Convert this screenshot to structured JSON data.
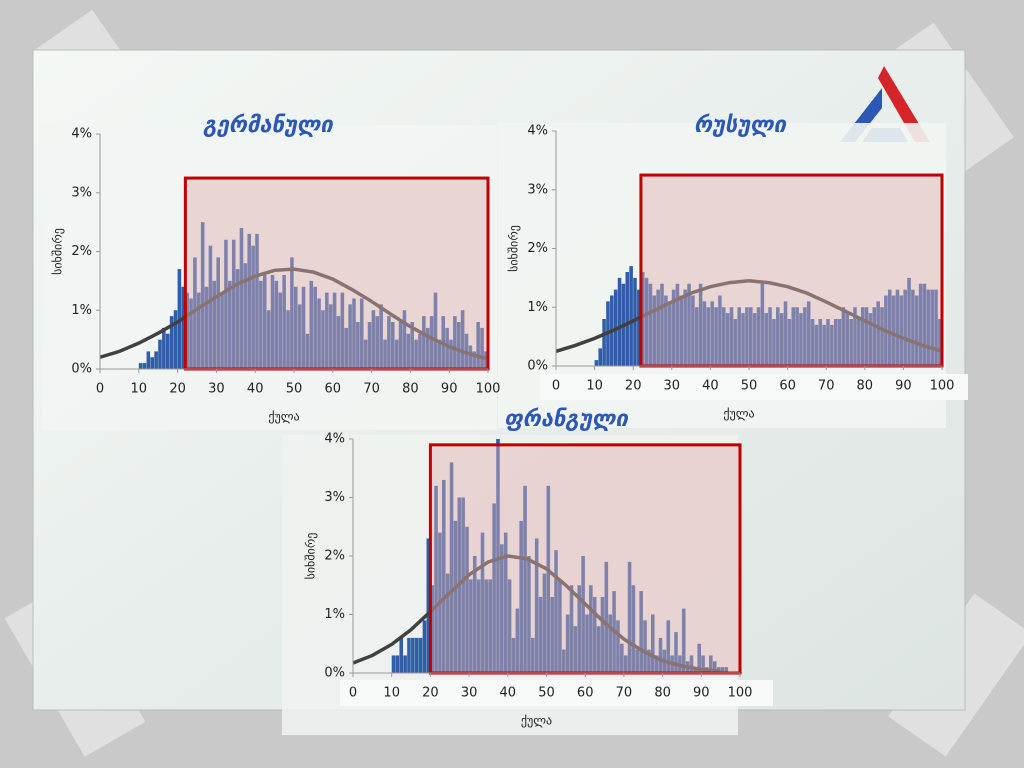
{
  "chart_data": [
    {
      "type": "histogram",
      "title": "გერმანული",
      "xlabel": "ქულა",
      "ylabel": "სიხშირე",
      "color": "#2f5da8",
      "bins": [
        10,
        11,
        12,
        13,
        14,
        15,
        16,
        17,
        18,
        19,
        20,
        21,
        22,
        23,
        24,
        25,
        26,
        27,
        28,
        29,
        30,
        31,
        32,
        33,
        34,
        35,
        36,
        37,
        38,
        39,
        40,
        41,
        42,
        43,
        44,
        45,
        46,
        47,
        48,
        49,
        50,
        51,
        52,
        53,
        54,
        55,
        56,
        57,
        58,
        59,
        60,
        61,
        62,
        63,
        64,
        65,
        66,
        67,
        68,
        69,
        70,
        71,
        72,
        73,
        74,
        75,
        76,
        77,
        78,
        79,
        80,
        81,
        82,
        83,
        84,
        85,
        86,
        87,
        88,
        89,
        90,
        91,
        92,
        93,
        94,
        95,
        96,
        97,
        98,
        99,
        100
      ],
      "values": [
        0.1,
        0.1,
        0.3,
        0.2,
        0.3,
        0.5,
        0.7,
        0.6,
        0.9,
        1.0,
        1.7,
        1.4,
        1.3,
        1.2,
        1.9,
        1.3,
        2.5,
        1.4,
        2.1,
        1.5,
        1.9,
        1.3,
        2.2,
        1.5,
        2.2,
        1.7,
        2.4,
        1.8,
        2.3,
        2.1,
        2.3,
        1.5,
        1.6,
        1.0,
        1.6,
        1.5,
        1.3,
        1.6,
        1.0,
        1.9,
        1.4,
        1.1,
        1.4,
        0.6,
        1.5,
        1.4,
        1.2,
        1.0,
        1.3,
        1.1,
        1.3,
        0.9,
        1.3,
        0.7,
        1.1,
        1.2,
        0.8,
        1.2,
        0.5,
        0.8,
        1.0,
        0.9,
        1.1,
        0.5,
        0.9,
        0.8,
        0.5,
        0.8,
        1.0,
        0.6,
        0.8,
        0.5,
        0.6,
        0.9,
        0.7,
        0.9,
        1.3,
        0.5,
        0.9,
        0.7,
        0.5,
        0.9,
        0.8,
        1.0,
        0.6,
        0.4,
        0.3,
        0.8,
        0.7,
        0.3
      ],
      "curve": {
        "color": "#404040",
        "x": [
          0,
          5,
          10,
          15,
          20,
          25,
          30,
          35,
          40,
          45,
          50,
          55,
          60,
          65,
          70,
          75,
          80,
          85,
          90,
          95,
          100
        ],
        "values": [
          0.2,
          0.3,
          0.44,
          0.61,
          0.8,
          1.02,
          1.23,
          1.43,
          1.58,
          1.68,
          1.7,
          1.65,
          1.53,
          1.35,
          1.15,
          0.93,
          0.72,
          0.54,
          0.38,
          0.26,
          0.17
        ]
      },
      "highlight": {
        "xlim": [
          22,
          100
        ],
        "ylim": [
          0,
          3.25
        ],
        "color": "#c00000"
      },
      "xlim": [
        0,
        100
      ],
      "xticks": [
        0,
        10,
        20,
        30,
        40,
        50,
        60,
        70,
        80,
        90,
        100
      ],
      "ylim": [
        0,
        4
      ],
      "yticks": [
        {
          "value": 0,
          "label": "0%"
        },
        {
          "value": 1,
          "label": "1%"
        },
        {
          "value": 2,
          "label": "2%"
        },
        {
          "value": 3,
          "label": "3%"
        },
        {
          "value": 4,
          "label": "4%"
        }
      ]
    },
    {
      "type": "histogram",
      "title": "რუსული",
      "xlabel": "ქულა",
      "ylabel": "სიხშირე",
      "color": "#2f5da8",
      "bins": [
        10,
        11,
        12,
        13,
        14,
        15,
        16,
        17,
        18,
        19,
        20,
        21,
        22,
        23,
        24,
        25,
        26,
        27,
        28,
        29,
        30,
        31,
        32,
        33,
        34,
        35,
        36,
        37,
        38,
        39,
        40,
        41,
        42,
        43,
        44,
        45,
        46,
        47,
        48,
        49,
        50,
        51,
        52,
        53,
        54,
        55,
        56,
        57,
        58,
        59,
        60,
        61,
        62,
        63,
        64,
        65,
        66,
        67,
        68,
        69,
        70,
        71,
        72,
        73,
        74,
        75,
        76,
        77,
        78,
        79,
        80,
        81,
        82,
        83,
        84,
        85,
        86,
        87,
        88,
        89,
        90,
        91,
        92,
        93,
        94,
        95,
        96,
        97,
        98,
        99,
        100
      ],
      "values": [
        0.1,
        0.3,
        0.8,
        1.1,
        1.2,
        1.3,
        1.5,
        1.4,
        1.6,
        1.7,
        1.5,
        1.3,
        1.6,
        1.5,
        1.4,
        1.2,
        1.3,
        1.4,
        1.2,
        1.1,
        1.3,
        1.4,
        1.2,
        1.3,
        1.4,
        1.2,
        1.0,
        1.4,
        1.1,
        1.0,
        1.1,
        1.0,
        1.2,
        1.0,
        0.9,
        1.0,
        0.8,
        1.0,
        0.9,
        1.0,
        1.0,
        0.9,
        1.0,
        1.4,
        0.9,
        1.0,
        0.8,
        1.0,
        0.9,
        1.1,
        0.8,
        1.0,
        1.0,
        0.9,
        1.0,
        1.1,
        0.8,
        0.7,
        0.8,
        0.7,
        0.8,
        0.7,
        0.8,
        0.8,
        1.0,
        0.9,
        0.8,
        1.0,
        0.8,
        1.0,
        1.0,
        0.9,
        1.0,
        1.1,
        1.0,
        1.2,
        1.3,
        1.2,
        1.3,
        1.2,
        1.3,
        1.5,
        1.3,
        1.2,
        1.4,
        1.4,
        1.3,
        1.3,
        1.3,
        0.8
      ],
      "curve": {
        "color": "#404040",
        "x": [
          0,
          5,
          10,
          15,
          20,
          25,
          30,
          35,
          40,
          45,
          50,
          55,
          60,
          65,
          70,
          75,
          80,
          85,
          90,
          95,
          100
        ],
        "values": [
          0.25,
          0.35,
          0.47,
          0.61,
          0.77,
          0.93,
          1.09,
          1.24,
          1.35,
          1.42,
          1.45,
          1.42,
          1.35,
          1.24,
          1.09,
          0.93,
          0.77,
          0.61,
          0.47,
          0.35,
          0.25
        ]
      },
      "highlight": {
        "xlim": [
          22,
          100
        ],
        "ylim": [
          0,
          3.25
        ],
        "color": "#c00000"
      },
      "xlim": [
        0,
        100
      ],
      "xticks": [
        0,
        10,
        20,
        30,
        40,
        50,
        60,
        70,
        80,
        90,
        100
      ],
      "ylim": [
        0,
        4
      ],
      "yticks": [
        {
          "value": 0,
          "label": "0%"
        },
        {
          "value": 1,
          "label": "1%"
        },
        {
          "value": 2,
          "label": "2%"
        },
        {
          "value": 3,
          "label": "3%"
        },
        {
          "value": 4,
          "label": "4%"
        }
      ]
    },
    {
      "type": "histogram",
      "title": "ფრანგული",
      "xlabel": "ქულა",
      "ylabel": "სიხშირე",
      "color": "#2f5da8",
      "bins": [
        10,
        11,
        12,
        13,
        14,
        15,
        16,
        17,
        18,
        19,
        20,
        21,
        22,
        23,
        24,
        25,
        26,
        27,
        28,
        29,
        30,
        31,
        32,
        33,
        34,
        35,
        36,
        37,
        38,
        39,
        40,
        41,
        42,
        43,
        44,
        45,
        46,
        47,
        48,
        49,
        50,
        51,
        52,
        53,
        54,
        55,
        56,
        57,
        58,
        59,
        60,
        61,
        62,
        63,
        64,
        65,
        66,
        67,
        68,
        69,
        70,
        71,
        72,
        73,
        74,
        75,
        76,
        77,
        78,
        79,
        80,
        81,
        82,
        83,
        84,
        85,
        86,
        87,
        88,
        89,
        90,
        91,
        92,
        93,
        94,
        95,
        96,
        97
      ],
      "values": [
        0.3,
        0.3,
        0.6,
        0.3,
        0.6,
        0.6,
        0.6,
        0.6,
        0.9,
        2.3,
        1.5,
        3.2,
        2.4,
        3.3,
        1.7,
        3.6,
        2.6,
        3.0,
        3.0,
        2.5,
        1.6,
        2.0,
        1.6,
        2.4,
        1.6,
        1.6,
        2.9,
        4.0,
        2.2,
        2.4,
        1.6,
        0.6,
        1.1,
        2.6,
        3.2,
        2.0,
        0.6,
        2.3,
        1.3,
        1.7,
        3.2,
        1.3,
        2.1,
        1.6,
        0.4,
        1.0,
        1.5,
        0.8,
        1.5,
        2.0,
        1.0,
        1.5,
        1.3,
        0.8,
        1.3,
        1.9,
        1.0,
        1.4,
        0.9,
        0.5,
        0.3,
        1.9,
        1.5,
        0.4,
        1.4,
        0.9,
        0.4,
        1.0,
        0.3,
        0.6,
        0.4,
        0.9,
        0.3,
        0.7,
        0.3,
        1.1,
        0.2,
        0.3,
        0.1,
        0.5,
        0.3,
        0.1,
        0.3,
        0.2,
        0.1,
        0.1,
        0.1
      ],
      "curve": {
        "color": "#404040",
        "x": [
          0,
          5,
          10,
          15,
          20,
          25,
          30,
          35,
          40,
          45,
          50,
          55,
          60,
          65,
          70,
          75,
          80,
          85,
          90,
          95
        ],
        "values": [
          0.17,
          0.3,
          0.49,
          0.74,
          1.05,
          1.37,
          1.68,
          1.9,
          2.0,
          1.95,
          1.78,
          1.5,
          1.18,
          0.86,
          0.58,
          0.37,
          0.21,
          0.12,
          0.06,
          0.03
        ]
      },
      "highlight": {
        "xlim": [
          20,
          100
        ],
        "ylim": [
          0,
          3.9
        ],
        "color": "#c00000"
      },
      "xlim": [
        0,
        100
      ],
      "xticks": [
        0,
        10,
        20,
        30,
        40,
        50,
        60,
        70,
        80,
        90,
        100
      ],
      "ylim": [
        0,
        4
      ],
      "yticks": [
        {
          "value": 0,
          "label": "0%"
        },
        {
          "value": 1,
          "label": "1%"
        },
        {
          "value": 2,
          "label": "2%"
        },
        {
          "value": 3,
          "label": "3%"
        },
        {
          "value": 4,
          "label": "4%"
        }
      ]
    }
  ]
}
